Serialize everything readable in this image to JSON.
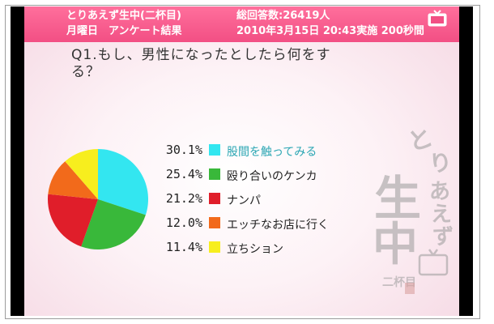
{
  "header": {
    "title": "とりあえず生中(二杯目)",
    "subtitle": "月曜日　アンケート結果",
    "total": "総回答数:26419人",
    "date": "2010年3月15日 20:43実施 200秒間"
  },
  "question": "Q1.もし、男性になったとしたら何をする？",
  "logo": {
    "text": "とりあえず生中(二杯目)"
  },
  "colors": {
    "header": "#f24f84",
    "background": "#f5d8e3"
  },
  "chart_data": {
    "type": "pie",
    "title": "",
    "categories": [
      "股間を触ってみる",
      "殴り合いのケンカ",
      "ナンパ",
      "エッチなお店に行く",
      "立ちション"
    ],
    "values": [
      30.1,
      25.4,
      21.2,
      12.0,
      11.4
    ],
    "value_labels": [
      "30.1%",
      "25.4%",
      "21.2%",
      "12.0%",
      "11.4%"
    ],
    "colors": [
      "#33e6f0",
      "#39b83a",
      "#e01e2a",
      "#f26a1b",
      "#f7ee1e"
    ],
    "legend": "right"
  }
}
